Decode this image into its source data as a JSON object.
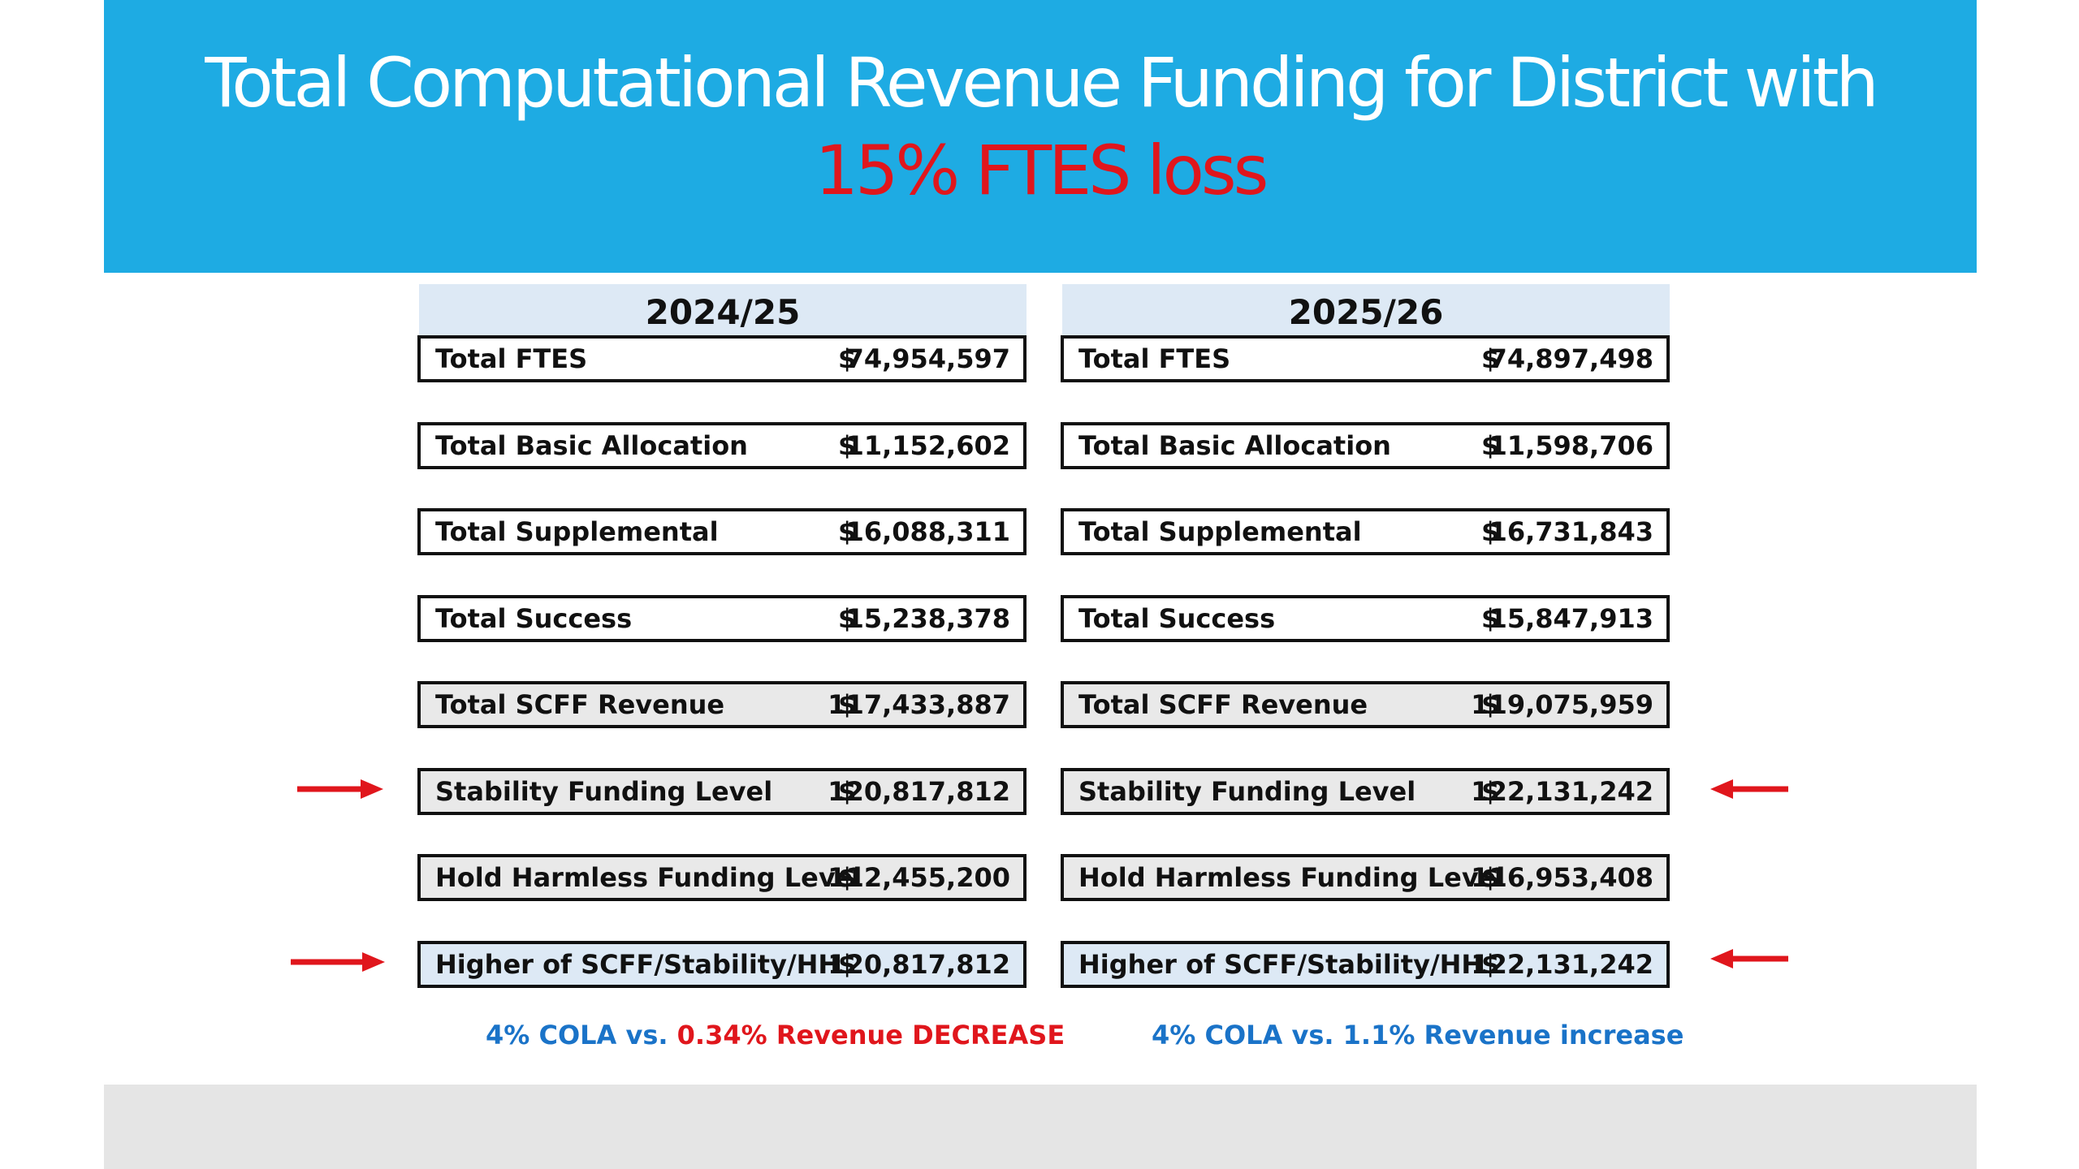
{
  "title": {
    "line1": "Total Computational Revenue Funding for District with",
    "line2": "15% FTES loss"
  },
  "columns": [
    {
      "year": "2024/25",
      "rows": [
        {
          "label": "Total FTES",
          "dollar": "$",
          "value": "74,954,597",
          "style": "plain"
        },
        {
          "label": "Total Basic Allocation",
          "dollar": "$",
          "value": "11,152,602",
          "style": "plain"
        },
        {
          "label": "Total Supplemental",
          "dollar": "$",
          "value": "16,088,311",
          "style": "plain"
        },
        {
          "label": "Total Success",
          "dollar": "$",
          "value": "15,238,378",
          "style": "plain"
        },
        {
          "label": "Total SCFF Revenue",
          "dollar": "$",
          "value": "117,433,887",
          "style": "shaded"
        },
        {
          "label": "Stability Funding Level",
          "dollar": "$",
          "value": "120,817,812",
          "style": "shaded"
        },
        {
          "label": "Hold Harmless Funding Level",
          "dollar": "$",
          "value": "112,455,200",
          "style": "shaded"
        },
        {
          "label": "Higher of SCFF/Stability/HH",
          "dollar": "$",
          "value": "120,817,812",
          "style": "blue"
        }
      ],
      "note": {
        "part1": "4% COLA vs. ",
        "part2": "0.34% Revenue DECREASE"
      }
    },
    {
      "year": "2025/26",
      "rows": [
        {
          "label": "Total FTES",
          "dollar": "$",
          "value": "74,897,498",
          "style": "plain"
        },
        {
          "label": "Total Basic Allocation",
          "dollar": "$",
          "value": "11,598,706",
          "style": "plain"
        },
        {
          "label": "Total Supplemental",
          "dollar": "$",
          "value": "16,731,843",
          "style": "plain"
        },
        {
          "label": "Total Success",
          "dollar": "$",
          "value": "15,847,913",
          "style": "plain"
        },
        {
          "label": "Total SCFF Revenue",
          "dollar": "$",
          "value": "119,075,959",
          "style": "shaded"
        },
        {
          "label": "Stability Funding Level",
          "dollar": "$",
          "value": "122,131,242",
          "style": "shaded"
        },
        {
          "label": "Hold Harmless Funding Level",
          "dollar": "$",
          "value": "116,953,408",
          "style": "shaded"
        },
        {
          "label": "Higher of SCFF/Stability/HH",
          "dollar": "$",
          "value": "122,131,242",
          "style": "blue"
        }
      ],
      "note": {
        "part1": "4% COLA vs. 1.1% Revenue increase"
      }
    }
  ],
  "colors": {
    "banner": "#1eabe3",
    "title_highlight": "#e0161c",
    "note_blue": "#1a73c8",
    "note_red": "#e0161c",
    "arrow": "#e0161c"
  },
  "icons": [
    "arrow-right-icon",
    "arrow-left-icon"
  ]
}
